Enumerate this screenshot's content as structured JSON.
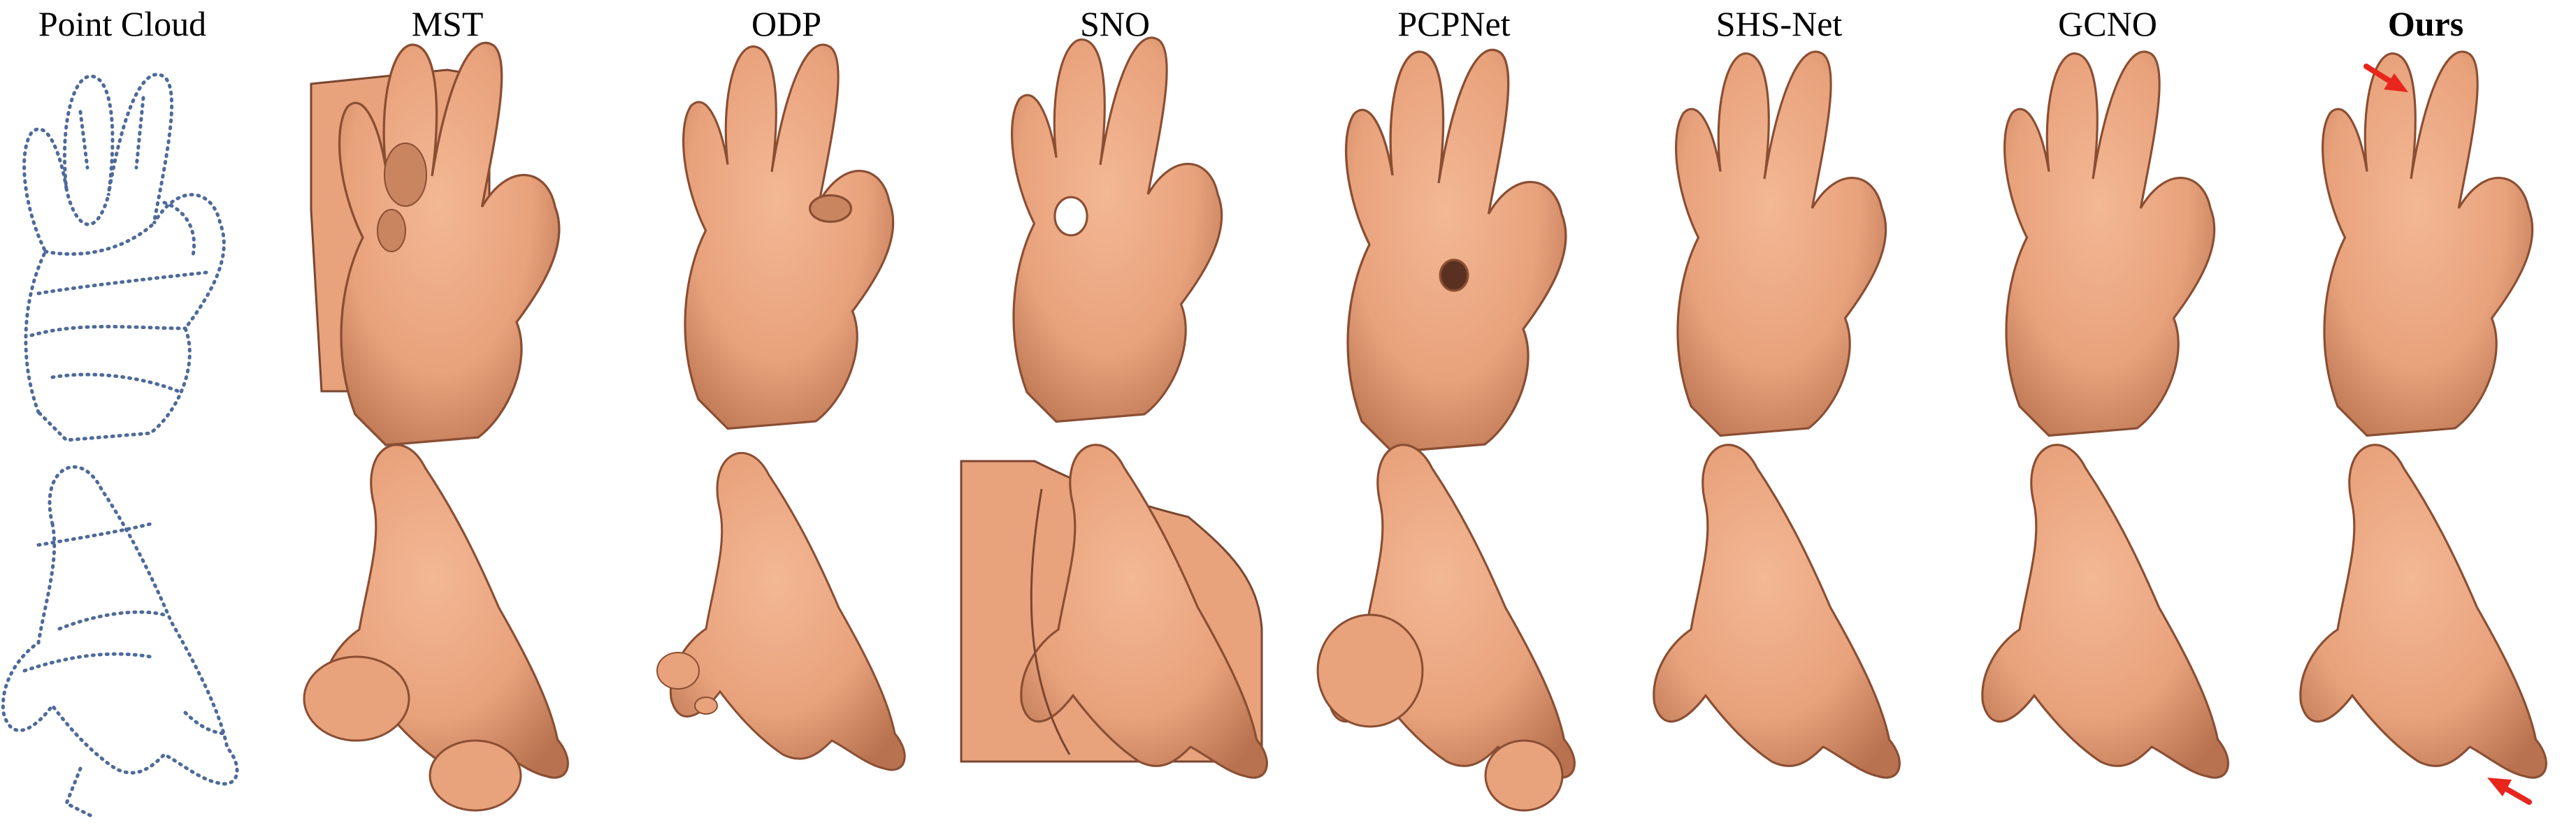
{
  "figure": {
    "columns": [
      {
        "key": "point-cloud",
        "label": "Point Cloud",
        "bold": false
      },
      {
        "key": "mst",
        "label": "MST",
        "bold": false
      },
      {
        "key": "odp",
        "label": "ODP",
        "bold": false
      },
      {
        "key": "sno",
        "label": "SNO",
        "bold": false
      },
      {
        "key": "pcpnet",
        "label": "PCPNet",
        "bold": false
      },
      {
        "key": "shs-net",
        "label": "SHS-Net",
        "bold": false
      },
      {
        "key": "gcno",
        "label": "GCNO",
        "bold": false
      },
      {
        "key": "ours",
        "label": "Ours",
        "bold": true
      }
    ],
    "rows": 2,
    "colors": {
      "mesh": "#E8A27C",
      "mesh_shadow": "#B8724F",
      "mesh_dark": "#7A4630",
      "points": "#4E6A9A",
      "arrow": "#E8261E"
    }
  }
}
